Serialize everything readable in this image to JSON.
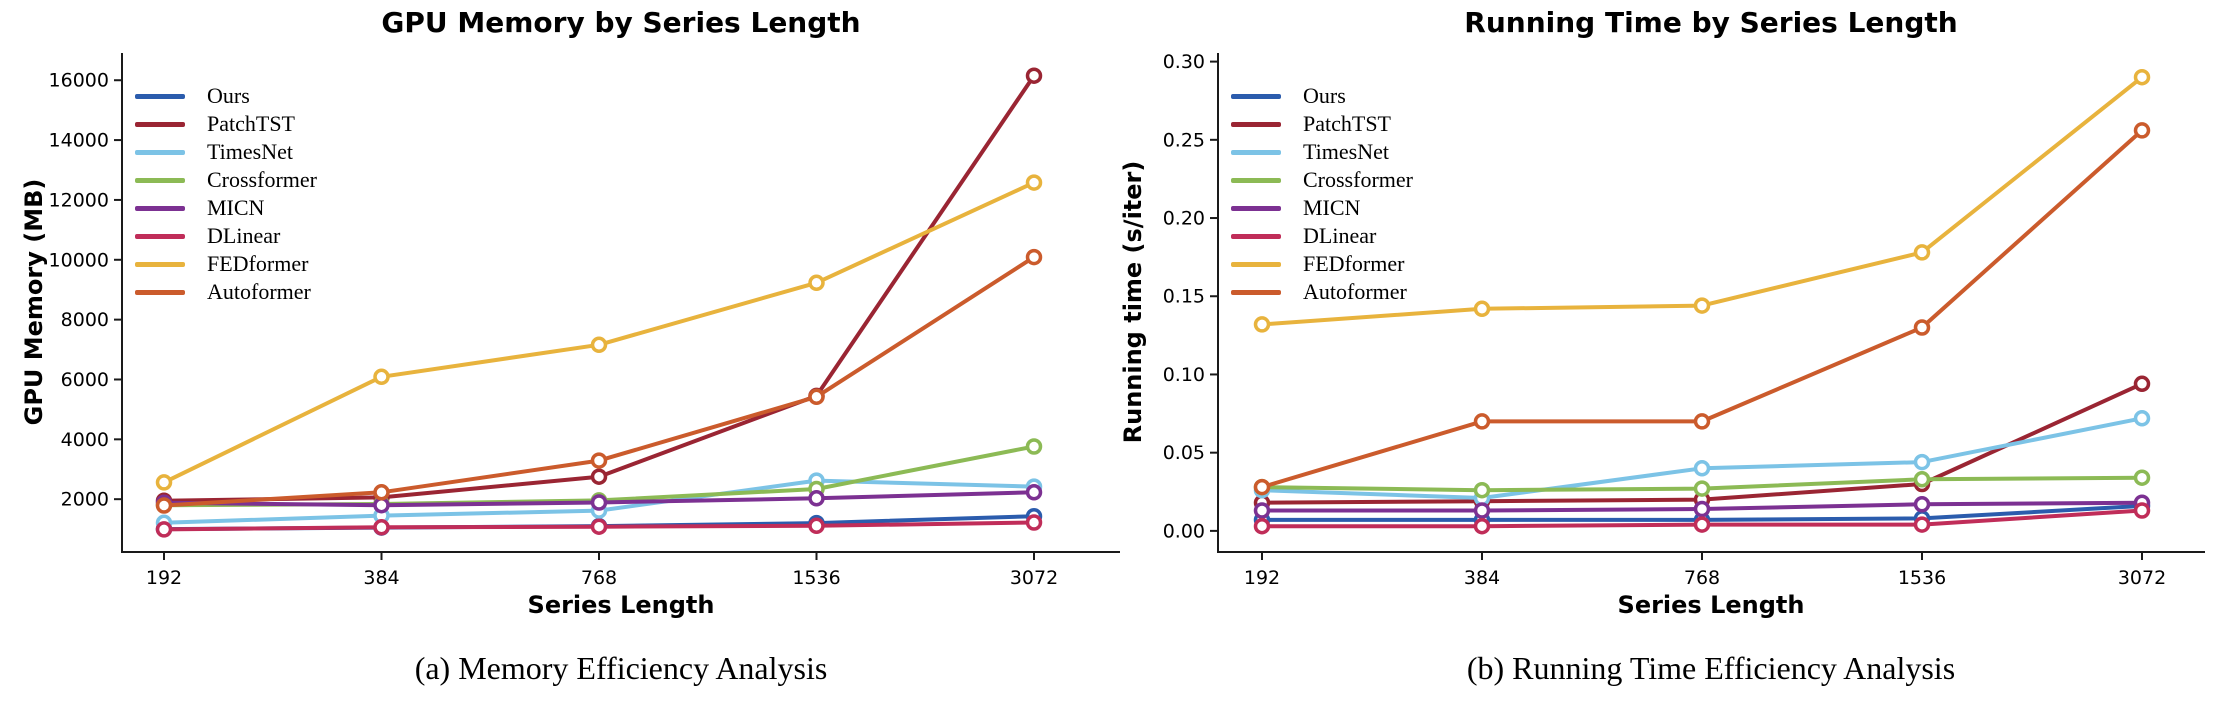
{
  "figure": {
    "background": "#ffffff",
    "axis_color": "#1a1a1a"
  },
  "chart_data": [
    {
      "type": "line",
      "title": "GPU Memory by Series Length",
      "xlabel": "Series Length",
      "ylabel": "GPU Memory (MB)",
      "caption": "(a) Memory Efficiency Analysis",
      "x_labels": [
        "192",
        "384",
        "768",
        "1536",
        "3072"
      ],
      "ytick_values": [
        2000,
        4000,
        6000,
        8000,
        10000,
        12000,
        14000,
        16000
      ],
      "ytick_labels": [
        "2000",
        "4000",
        "6000",
        "8000",
        "10000",
        "12000",
        "14000",
        "16000"
      ],
      "ylim": [
        235,
        16910
      ],
      "grid": false,
      "legend_position": "top-left",
      "series": [
        {
          "name": "Ours",
          "color": "#2b5cad",
          "values": [
            1000,
            1050,
            1100,
            1200,
            1430
          ]
        },
        {
          "name": "PatchTST",
          "color": "#9a2533",
          "values": [
            1950,
            2060,
            2750,
            5450,
            16150
          ]
        },
        {
          "name": "TimesNet",
          "color": "#7cc3e6",
          "values": [
            1210,
            1450,
            1620,
            2620,
            2420
          ]
        },
        {
          "name": "Crossformer",
          "color": "#8cba55",
          "values": [
            1800,
            1840,
            1960,
            2340,
            3760
          ]
        },
        {
          "name": "MICN",
          "color": "#7c3192",
          "values": [
            1880,
            1800,
            1890,
            2030,
            2230
          ]
        },
        {
          "name": "DLinear",
          "color": "#c02d59",
          "values": [
            990,
            1060,
            1080,
            1110,
            1220
          ]
        },
        {
          "name": "FEDformer",
          "color": "#e8b33d",
          "values": [
            2560,
            6090,
            7160,
            9230,
            12580
          ]
        },
        {
          "name": "Autoformer",
          "color": "#cb5b2c",
          "values": [
            1790,
            2230,
            3290,
            5420,
            10090
          ]
        }
      ]
    },
    {
      "type": "line",
      "title": "Running Time by Series Length",
      "xlabel": "Series Length",
      "ylabel": "Running time (s/iter)",
      "caption": "(b) Running Time Efficiency Analysis",
      "x_labels": [
        "192",
        "384",
        "768",
        "1536",
        "3072"
      ],
      "ytick_values": [
        0.0,
        0.05,
        0.1,
        0.15,
        0.2,
        0.25,
        0.3
      ],
      "ytick_labels": [
        "0.00",
        "0.05",
        "0.10",
        "0.15",
        "0.20",
        "0.25",
        "0.30"
      ],
      "ylim": [
        -0.0135,
        0.3055
      ],
      "grid": false,
      "legend_position": "top-left",
      "series": [
        {
          "name": "Ours",
          "color": "#2b5cad",
          "values": [
            0.007,
            0.007,
            0.007,
            0.008,
            0.016
          ]
        },
        {
          "name": "PatchTST",
          "color": "#9a2533",
          "values": [
            0.018,
            0.019,
            0.02,
            0.03,
            0.094
          ]
        },
        {
          "name": "TimesNet",
          "color": "#7cc3e6",
          "values": [
            0.026,
            0.021,
            0.04,
            0.044,
            0.072
          ]
        },
        {
          "name": "Crossformer",
          "color": "#8cba55",
          "values": [
            0.028,
            0.026,
            0.027,
            0.033,
            0.034
          ]
        },
        {
          "name": "MICN",
          "color": "#7c3192",
          "values": [
            0.013,
            0.013,
            0.014,
            0.017,
            0.018
          ]
        },
        {
          "name": "DLinear",
          "color": "#c02d59",
          "values": [
            0.003,
            0.003,
            0.004,
            0.004,
            0.013
          ]
        },
        {
          "name": "FEDformer",
          "color": "#e8b33d",
          "values": [
            0.132,
            0.142,
            0.144,
            0.178,
            0.29
          ]
        },
        {
          "name": "Autoformer",
          "color": "#cb5b2c",
          "values": [
            0.028,
            0.07,
            0.07,
            0.13,
            0.256
          ]
        }
      ]
    }
  ]
}
